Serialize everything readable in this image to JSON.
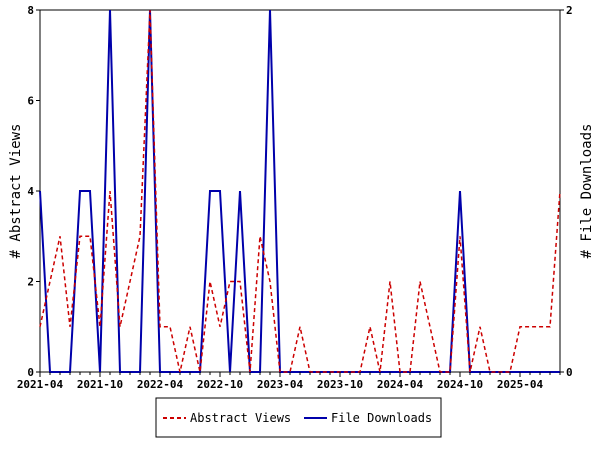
{
  "chart_data": {
    "type": "line",
    "x": [
      "2021-04",
      "2021-05",
      "2021-06",
      "2021-07",
      "2021-08",
      "2021-09",
      "2021-10",
      "2021-11",
      "2021-12",
      "2022-01",
      "2022-02",
      "2022-03",
      "2022-04",
      "2022-05",
      "2022-06",
      "2022-07",
      "2022-08",
      "2022-09",
      "2022-10",
      "2022-11",
      "2022-12",
      "2023-01",
      "2023-02",
      "2023-03",
      "2023-04",
      "2023-05",
      "2023-06",
      "2023-07",
      "2023-08",
      "2023-09",
      "2023-10",
      "2023-11",
      "2023-12",
      "2024-01",
      "2024-02",
      "2024-03",
      "2024-04",
      "2024-05",
      "2024-06",
      "2024-07",
      "2024-08",
      "2024-09",
      "2024-10",
      "2024-11",
      "2024-12",
      "2025-01",
      "2025-02",
      "2025-03",
      "2025-04",
      "2025-05",
      "2025-06",
      "2025-07",
      "2025-08"
    ],
    "x_tick_labels": [
      "2021-04",
      "2021-10",
      "2022-04",
      "2022-10",
      "2023-04",
      "2023-10",
      "2024-04",
      "2024-10",
      "2025-04"
    ],
    "series": [
      {
        "name": "Abstract Views",
        "axis": "left",
        "color": "#cc0000",
        "style": "dashed",
        "values": [
          1,
          2,
          3,
          1,
          3,
          3,
          1,
          4,
          1,
          2,
          3,
          8,
          1,
          1,
          0,
          1,
          0,
          2,
          1,
          2,
          2,
          0,
          3,
          2,
          0,
          0,
          1,
          0,
          0,
          0,
          0,
          0,
          0,
          1,
          0,
          2,
          0,
          0,
          2,
          1,
          0,
          0,
          3,
          0,
          1,
          0,
          0,
          0,
          1,
          1,
          1,
          1,
          4
        ]
      },
      {
        "name": "File Downloads",
        "axis": "right",
        "color": "#0000aa",
        "style": "solid",
        "values": [
          1,
          0,
          0,
          0,
          1,
          1,
          0,
          2,
          0,
          0,
          0,
          2,
          0,
          0,
          0,
          0,
          0,
          1,
          1,
          0,
          1,
          0,
          0,
          2,
          0,
          0,
          0,
          0,
          0,
          0,
          0,
          0,
          0,
          0,
          0,
          0,
          0,
          0,
          0,
          0,
          0,
          0,
          1,
          0,
          0,
          0,
          0,
          0,
          0,
          0,
          0,
          0,
          0
        ]
      }
    ],
    "y_left": {
      "label": "# Abstract Views",
      "ylim": [
        0,
        8
      ],
      "ticks": [
        "0",
        "2",
        "4",
        "6",
        "8"
      ]
    },
    "y_right": {
      "label": "# File Downloads",
      "ylim": [
        0,
        2
      ],
      "ticks": [
        "0",
        "2"
      ]
    },
    "legend": {
      "placement": "bottom",
      "entries": [
        "Abstract Views",
        "File Downloads"
      ]
    },
    "grid": false
  }
}
